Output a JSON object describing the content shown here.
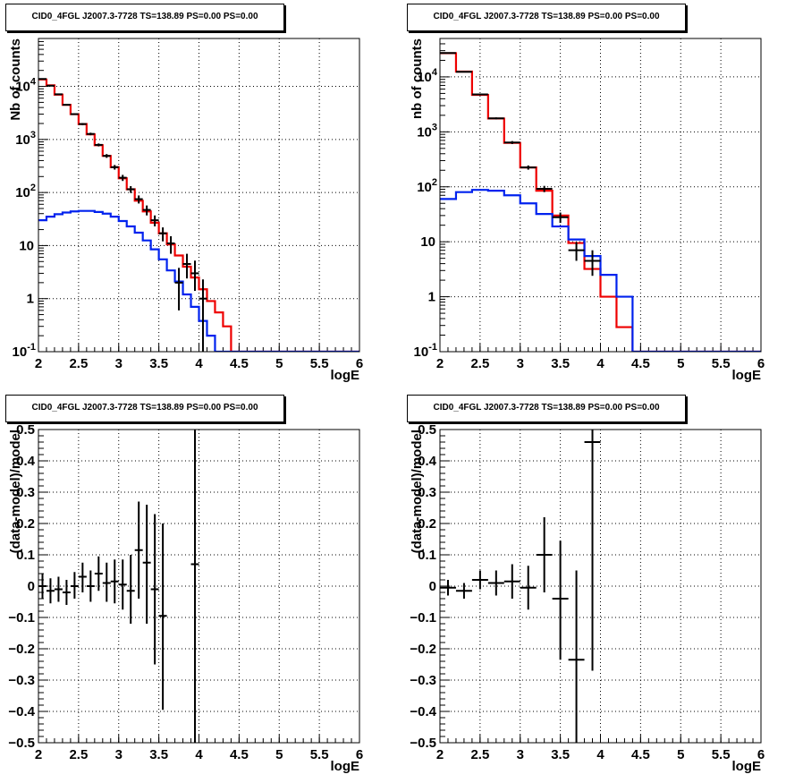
{
  "colors": {
    "data": "#000000",
    "total_model": "#ee0000",
    "source_model": "#0022ee",
    "grid": "#000000"
  },
  "chart_data": [
    {
      "type": "line",
      "title": "CID0_4FGL J2007.3-7728 TS=138.89 PS=0.00 PS=0.00",
      "xlabel": "logE",
      "ylabel": "Nb of counts",
      "log_y": true,
      "grid": true,
      "xlim": [
        2,
        6
      ],
      "ylim": [
        0.1,
        80000
      ],
      "x_ticks": [
        "2",
        "2.5",
        "3",
        "3.5",
        "4",
        "4.5",
        "5",
        "5.5",
        "6"
      ],
      "y_ticks": [
        "10^-1",
        "1",
        "10",
        "10^2",
        "10^3",
        "10^4"
      ],
      "bin_edges": [
        2.0,
        2.1,
        2.2,
        2.3,
        2.4,
        2.5,
        2.6,
        2.7,
        2.8,
        2.9,
        3.0,
        3.1,
        3.2,
        3.3,
        3.4,
        3.5,
        3.6,
        3.7,
        3.8,
        3.9,
        4.0,
        4.1,
        4.2,
        4.3,
        4.4,
        4.5,
        4.6,
        4.7,
        4.8,
        4.9,
        5.0,
        5.1,
        5.2,
        5.3,
        5.4,
        5.5,
        5.6,
        5.7,
        5.8,
        5.9,
        6.0
      ],
      "series": [
        {
          "style": "step",
          "color": "#ee0000",
          "values": [
            13500,
            10500,
            7000,
            4500,
            3000,
            1950,
            1250,
            780,
            490,
            300,
            185,
            115,
            70,
            44,
            27,
            17,
            10.5,
            6.5,
            4,
            2.5,
            1.5,
            0.9,
            0.55,
            0.3,
            0.1,
            0.1,
            0.1,
            0.1,
            0.1,
            0.1,
            0.1,
            0.1,
            0.1,
            0.1,
            0.1,
            0.1,
            0.1,
            0.1,
            0.1,
            0.1
          ]
        },
        {
          "style": "step",
          "color": "#0022ee",
          "values": [
            30,
            35,
            39,
            42,
            44,
            45,
            45,
            43,
            40,
            35,
            29,
            23,
            17.5,
            12.5,
            8.5,
            5.5,
            3.4,
            2.1,
            1.2,
            0.7,
            0.38,
            0.2,
            0.1,
            0.1,
            0.1,
            0.1,
            0.1,
            0.1,
            0.1,
            0.1,
            0.1,
            0.1,
            0.1,
            0.1,
            0.1,
            0.1,
            0.1,
            0.1,
            0.1,
            0.1
          ]
        }
      ],
      "points": [
        {
          "x": 2.05,
          "y": 13800,
          "ylo": 13550,
          "yhi": 14050
        },
        {
          "x": 2.15,
          "y": 10300,
          "ylo": 10100,
          "yhi": 10500
        },
        {
          "x": 2.25,
          "y": 7100,
          "ylo": 6930,
          "yhi": 7270
        },
        {
          "x": 2.35,
          "y": 4500,
          "ylo": 4370,
          "yhi": 4630
        },
        {
          "x": 2.45,
          "y": 3000,
          "ylo": 2890,
          "yhi": 3110
        },
        {
          "x": 2.55,
          "y": 1950,
          "ylo": 1860,
          "yhi": 2040
        },
        {
          "x": 2.65,
          "y": 1270,
          "ylo": 1200,
          "yhi": 1340
        },
        {
          "x": 2.75,
          "y": 790,
          "ylo": 740,
          "yhi": 840
        },
        {
          "x": 2.85,
          "y": 490,
          "ylo": 450,
          "yhi": 530
        },
        {
          "x": 2.95,
          "y": 300,
          "ylo": 270,
          "yhi": 330
        },
        {
          "x": 3.05,
          "y": 190,
          "ylo": 165,
          "yhi": 215
        },
        {
          "x": 3.15,
          "y": 115,
          "ylo": 98,
          "yhi": 132
        },
        {
          "x": 3.25,
          "y": 75,
          "ylo": 62,
          "yhi": 88
        },
        {
          "x": 3.35,
          "y": 47,
          "ylo": 37,
          "yhi": 57
        },
        {
          "x": 3.45,
          "y": 30,
          "ylo": 23,
          "yhi": 37
        },
        {
          "x": 3.55,
          "y": 17,
          "ylo": 12,
          "yhi": 22
        },
        {
          "x": 3.65,
          "y": 11,
          "ylo": 7,
          "yhi": 15
        },
        {
          "x": 3.75,
          "y": 2,
          "ylo": 0.6,
          "yhi": 3.8
        },
        {
          "x": 3.85,
          "y": 4.5,
          "ylo": 2.4,
          "yhi": 7
        },
        {
          "x": 3.95,
          "y": 3,
          "ylo": 1.4,
          "yhi": 5.2
        },
        {
          "x": 4.05,
          "y": 1,
          "ylo": 0.1,
          "yhi": 2.3
        }
      ]
    },
    {
      "type": "line",
      "title": "CID0_4FGL J2007.3-7728 TS=138.89 PS=0.00 PS=0.00",
      "xlabel": "logE",
      "ylabel": "nb of counts",
      "log_y": true,
      "grid": true,
      "xlim": [
        2,
        6
      ],
      "ylim": [
        0.1,
        50000
      ],
      "x_ticks": [
        "2",
        "2.5",
        "3",
        "3.5",
        "4",
        "4.5",
        "5",
        "5.5",
        "6"
      ],
      "y_ticks": [
        "10^-1",
        "1",
        "10",
        "10^2",
        "10^3",
        "10^4"
      ],
      "bin_edges": [
        2.0,
        2.2,
        2.4,
        2.6,
        2.8,
        3.0,
        3.2,
        3.4,
        3.6,
        3.8,
        4.0,
        4.2,
        4.4,
        4.6,
        4.8,
        5.0,
        5.2,
        5.4,
        5.6,
        5.8,
        6.0
      ],
      "series": [
        {
          "style": "step",
          "color": "#ee0000",
          "values": [
            27000,
            12500,
            4700,
            1750,
            630,
            225,
            85,
            30,
            9.5,
            3.2,
            1,
            0.28,
            0.1,
            0.1,
            0.1,
            0.1,
            0.1,
            0.1,
            0.1,
            0.1
          ]
        },
        {
          "style": "step",
          "color": "#0022ee",
          "values": [
            60,
            80,
            88,
            85,
            70,
            50,
            32,
            19,
            11,
            5.5,
            2.5,
            1,
            0.1,
            0.1,
            0.1,
            0.1,
            0.1,
            0.1,
            0.1,
            0.1
          ]
        }
      ],
      "points": [
        {
          "x": 2.1,
          "y": 27200,
          "ylo": 26900,
          "yhi": 27500
        },
        {
          "x": 2.3,
          "y": 12400,
          "ylo": 12200,
          "yhi": 12600
        },
        {
          "x": 2.5,
          "y": 4800,
          "ylo": 4680,
          "yhi": 4920
        },
        {
          "x": 2.7,
          "y": 1760,
          "ylo": 1690,
          "yhi": 1830
        },
        {
          "x": 2.9,
          "y": 640,
          "ylo": 600,
          "yhi": 680
        },
        {
          "x": 3.1,
          "y": 225,
          "ylo": 205,
          "yhi": 245
        },
        {
          "x": 3.3,
          "y": 92,
          "ylo": 80,
          "yhi": 104
        },
        {
          "x": 3.5,
          "y": 28,
          "ylo": 22,
          "yhi": 34
        },
        {
          "x": 3.7,
          "y": 7,
          "ylo": 4.5,
          "yhi": 9.8
        },
        {
          "x": 3.9,
          "y": 4.5,
          "ylo": 2.4,
          "yhi": 7
        }
      ]
    },
    {
      "type": "scatter",
      "title": "CID0_4FGL J2007.3-7728 TS=138.89 PS=0.00 PS=0.00",
      "xlabel": "logE",
      "ylabel": "(data-model)/model",
      "grid": true,
      "xlim": [
        2,
        6
      ],
      "ylim": [
        -0.5,
        0.5
      ],
      "x_ticks": [
        "2",
        "2.5",
        "3",
        "3.5",
        "4",
        "4.5",
        "5",
        "5.5",
        "6"
      ],
      "y_ticks": [
        "−0.5",
        "−0.4",
        "−0.3",
        "−0.2",
        "−0.1",
        "0",
        "0.1",
        "0.2",
        "0.3",
        "0.4",
        "0.5"
      ],
      "x_bin_width": 0.1,
      "points": [
        {
          "x": 2.05,
          "y": 0.0,
          "ylo": -0.04,
          "yhi": 0.04
        },
        {
          "x": 2.15,
          "y": -0.015,
          "ylo": -0.055,
          "yhi": 0.025
        },
        {
          "x": 2.25,
          "y": -0.01,
          "ylo": -0.05,
          "yhi": 0.03
        },
        {
          "x": 2.35,
          "y": -0.02,
          "ylo": -0.06,
          "yhi": 0.02
        },
        {
          "x": 2.45,
          "y": 0.0,
          "ylo": -0.04,
          "yhi": 0.045
        },
        {
          "x": 2.55,
          "y": 0.03,
          "ylo": -0.02,
          "yhi": 0.075
        },
        {
          "x": 2.65,
          "y": 0.0,
          "ylo": -0.05,
          "yhi": 0.05
        },
        {
          "x": 2.75,
          "y": 0.04,
          "ylo": -0.015,
          "yhi": 0.095
        },
        {
          "x": 2.85,
          "y": 0.01,
          "ylo": -0.05,
          "yhi": 0.075
        },
        {
          "x": 2.95,
          "y": 0.015,
          "ylo": -0.055,
          "yhi": 0.085
        },
        {
          "x": 3.05,
          "y": 0.005,
          "ylo": -0.075,
          "yhi": 0.085
        },
        {
          "x": 3.15,
          "y": -0.015,
          "ylo": -0.12,
          "yhi": 0.1
        },
        {
          "x": 3.25,
          "y": 0.115,
          "ylo": -0.04,
          "yhi": 0.27
        },
        {
          "x": 3.35,
          "y": 0.075,
          "ylo": -0.12,
          "yhi": 0.26
        },
        {
          "x": 3.45,
          "y": -0.01,
          "ylo": -0.25,
          "yhi": 0.23
        },
        {
          "x": 3.55,
          "y": -0.095,
          "ylo": -0.395,
          "yhi": 0.2
        },
        {
          "x": 3.95,
          "y": 0.07,
          "ylo": -0.5,
          "yhi": 0.5
        }
      ]
    },
    {
      "type": "scatter",
      "title": "CID0_4FGL J2007.3-7728 TS=138.89 PS=0.00 PS=0.00",
      "xlabel": "logE",
      "ylabel": "(data-model)/model",
      "grid": true,
      "xlim": [
        2,
        6
      ],
      "ylim": [
        -0.5,
        0.5
      ],
      "x_ticks": [
        "2",
        "2.5",
        "3",
        "3.5",
        "4",
        "4.5",
        "5",
        "5.5",
        "6"
      ],
      "y_ticks": [
        "−0.5",
        "−0.4",
        "−0.3",
        "−0.2",
        "−0.1",
        "0",
        "0.1",
        "0.2",
        "0.3",
        "0.4",
        "0.5"
      ],
      "x_bin_width": 0.2,
      "points": [
        {
          "x": 2.1,
          "y": -0.005,
          "ylo": -0.03,
          "yhi": 0.02
        },
        {
          "x": 2.3,
          "y": -0.015,
          "ylo": -0.04,
          "yhi": 0.01
        },
        {
          "x": 2.5,
          "y": 0.02,
          "ylo": -0.01,
          "yhi": 0.05
        },
        {
          "x": 2.7,
          "y": 0.01,
          "ylo": -0.03,
          "yhi": 0.05
        },
        {
          "x": 2.9,
          "y": 0.015,
          "ylo": -0.04,
          "yhi": 0.07
        },
        {
          "x": 3.1,
          "y": -0.005,
          "ylo": -0.075,
          "yhi": 0.065
        },
        {
          "x": 3.3,
          "y": 0.1,
          "ylo": -0.02,
          "yhi": 0.22
        },
        {
          "x": 3.5,
          "y": -0.04,
          "ylo": -0.235,
          "yhi": 0.145
        },
        {
          "x": 3.7,
          "y": -0.235,
          "ylo": -0.5,
          "yhi": 0.05
        },
        {
          "x": 3.9,
          "y": 0.46,
          "ylo": -0.27,
          "yhi": 0.5
        }
      ]
    }
  ]
}
